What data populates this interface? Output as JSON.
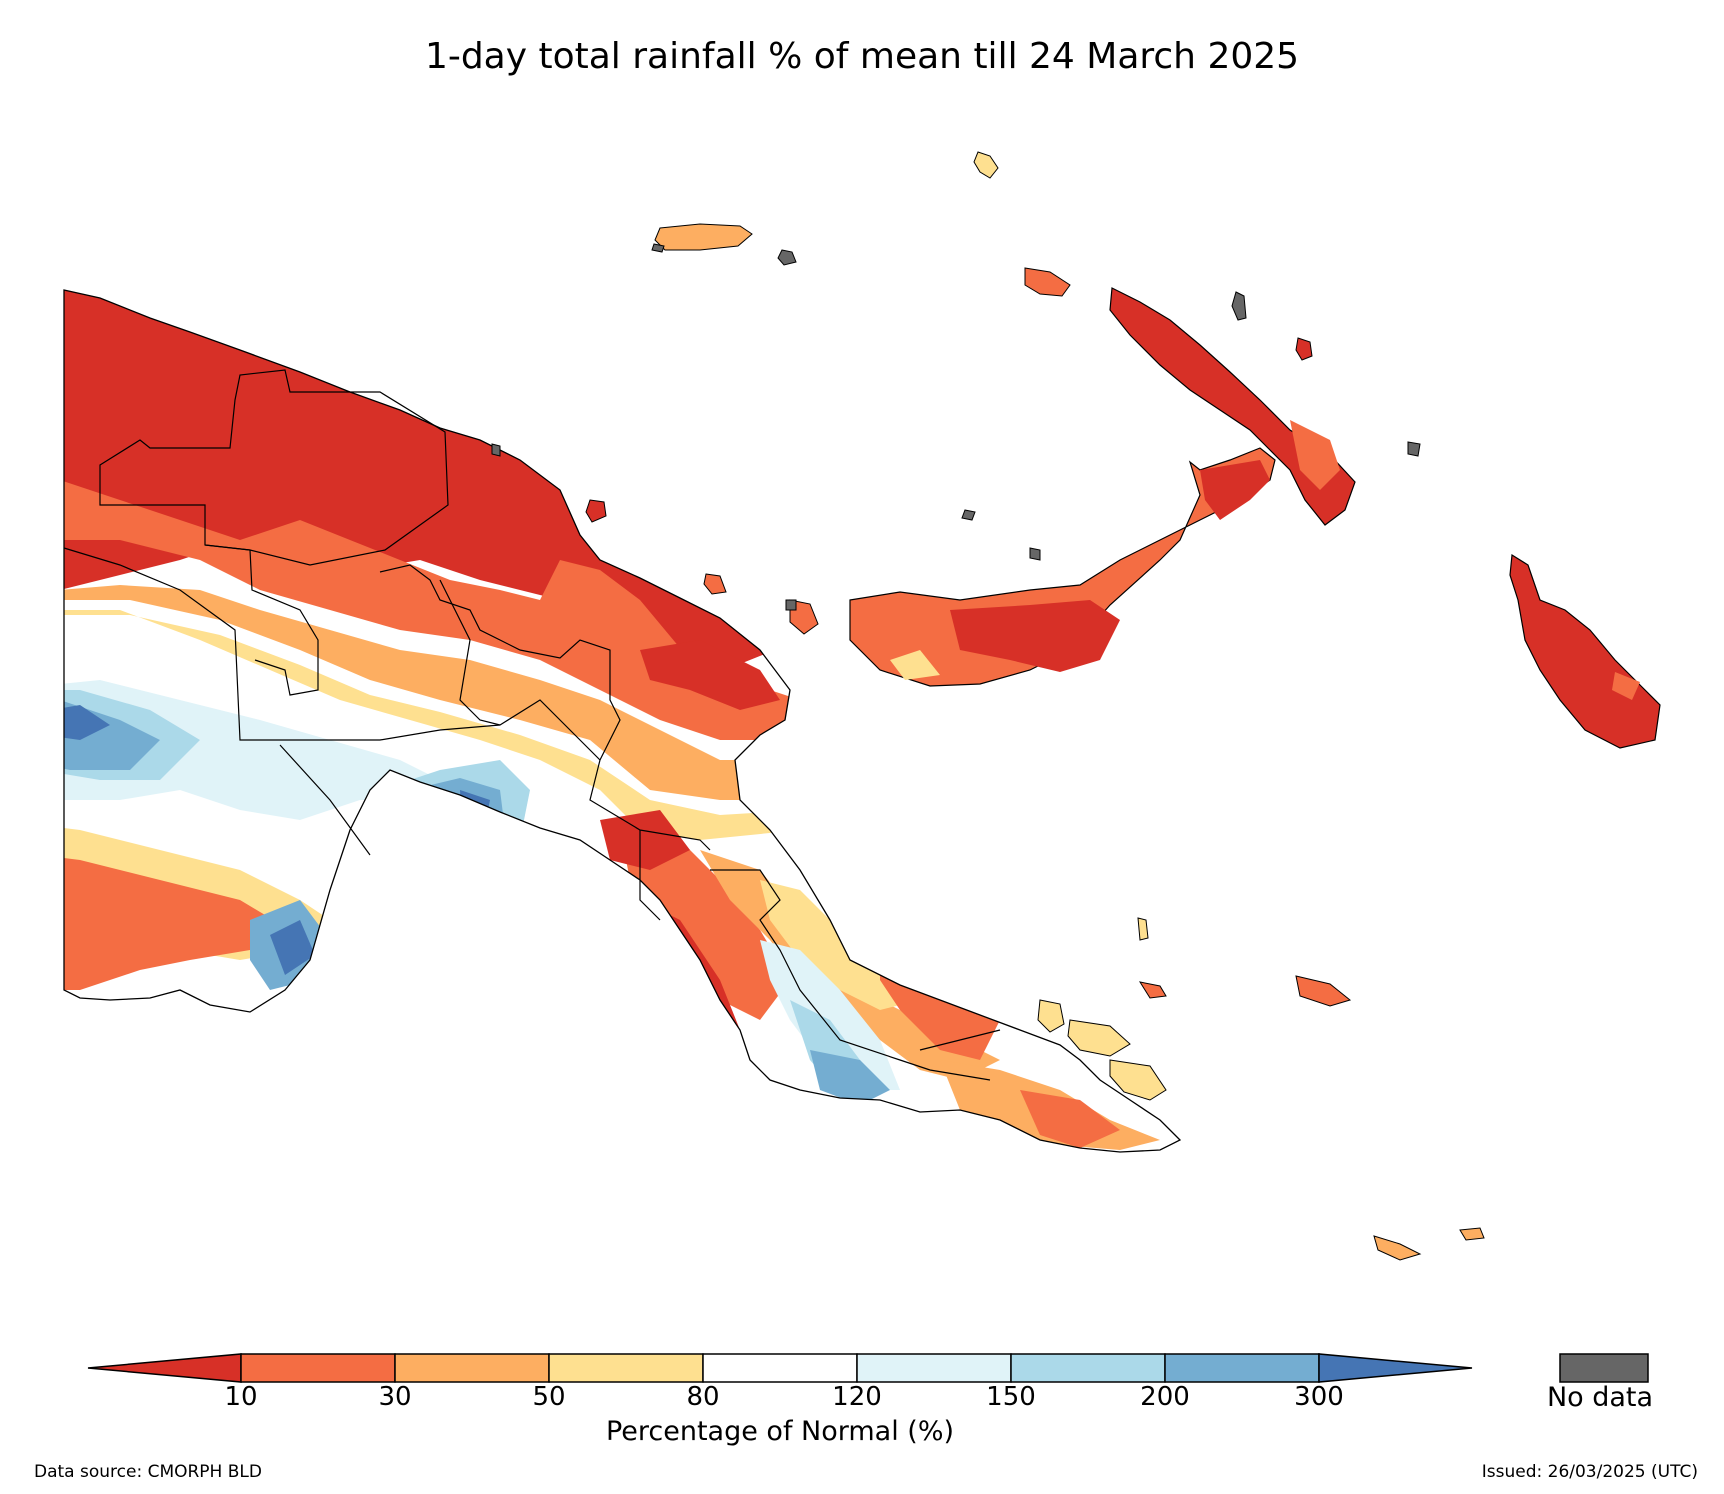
{
  "title": "1-day total rainfall % of mean till 24 March 2025",
  "colorbar": {
    "ticks": [
      "10",
      "30",
      "50",
      "80",
      "120",
      "150",
      "200",
      "300"
    ],
    "label": "Percentage of Normal (%)",
    "colors": [
      "#d73027",
      "#f46d43",
      "#fdae61",
      "#fee090",
      "#ffffff",
      "#e0f3f8",
      "#abd9e9",
      "#74add1",
      "#4575b4"
    ]
  },
  "nodata": {
    "label": "No data",
    "color": "#666666"
  },
  "footer": {
    "source": "Data source: CMORPH BLD",
    "issued": "Issued: 26/03/2025 (UTC)"
  }
}
